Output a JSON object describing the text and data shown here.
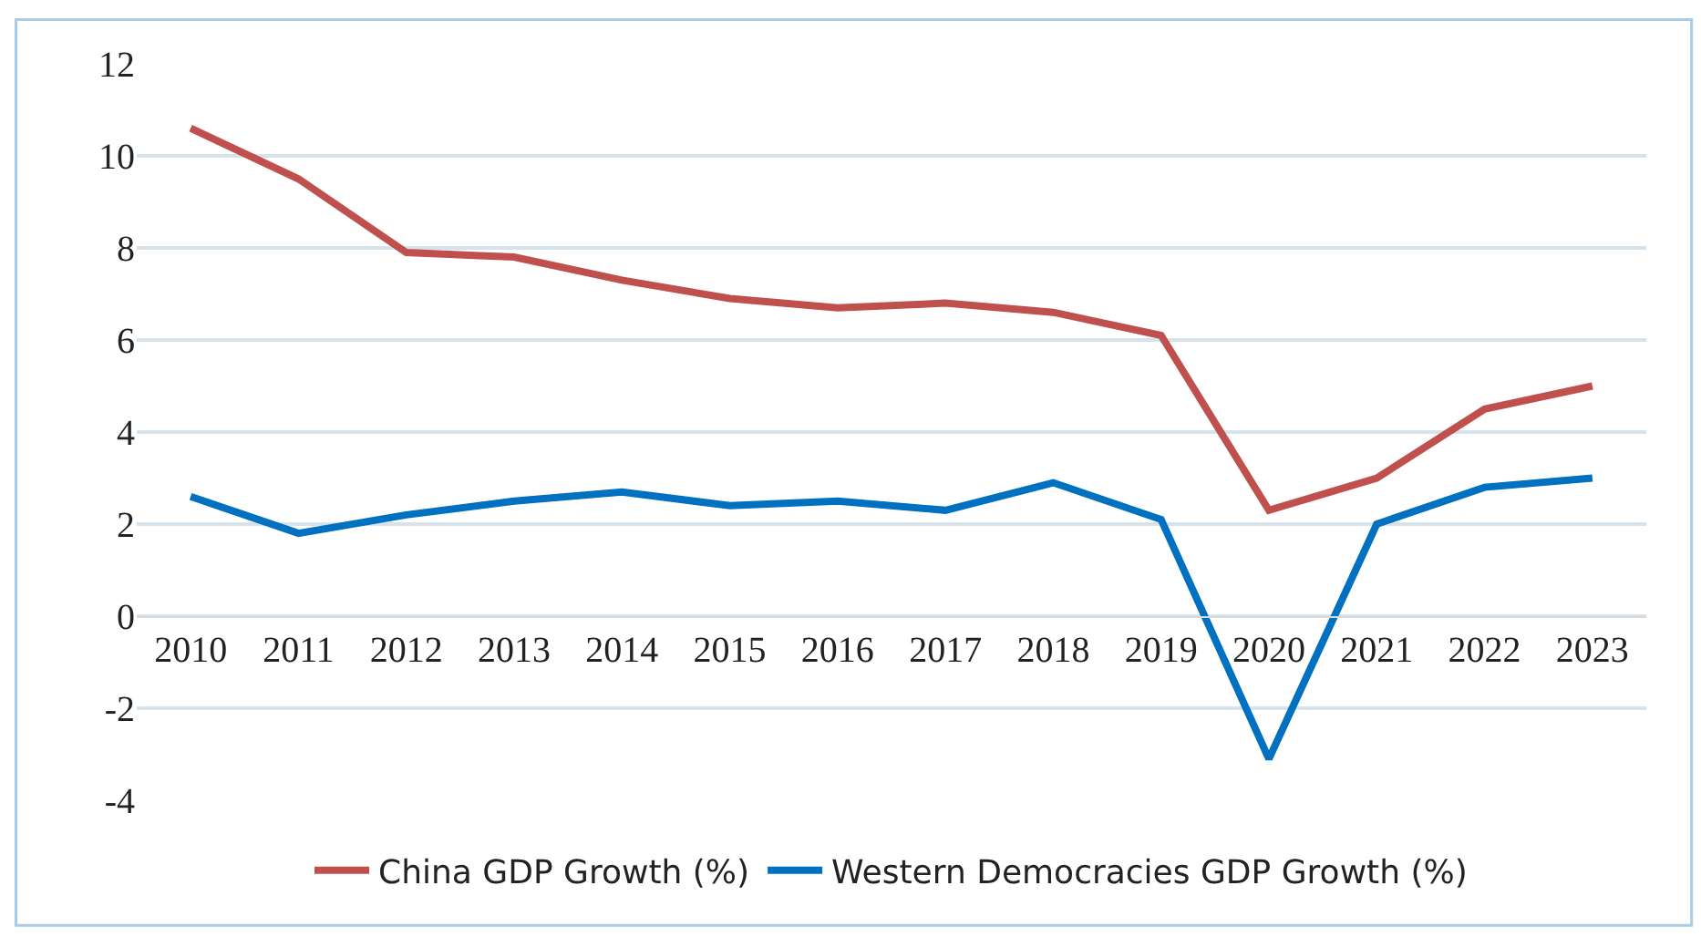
{
  "chart_data": {
    "type": "line",
    "categories": [
      "2010",
      "2011",
      "2012",
      "2013",
      "2014",
      "2015",
      "2016",
      "2017",
      "2018",
      "2019",
      "2020",
      "2021",
      "2022",
      "2023"
    ],
    "series": [
      {
        "name": "China GDP Growth (%)",
        "color": "#c0504d",
        "values": [
          10.6,
          9.5,
          7.9,
          7.8,
          7.3,
          6.9,
          6.7,
          6.8,
          6.6,
          6.1,
          2.3,
          3.0,
          4.5,
          5.0
        ]
      },
      {
        "name": "Western Democracies GDP Growth (%)",
        "color": "#0070c0",
        "values": [
          2.6,
          1.8,
          2.2,
          2.5,
          2.7,
          2.4,
          2.5,
          2.3,
          2.9,
          2.1,
          -3.1,
          2.0,
          2.8,
          3.0
        ]
      }
    ],
    "ylim": [
      -4,
      12
    ],
    "yticks": [
      -4,
      -2,
      0,
      2,
      4,
      6,
      8,
      10,
      12
    ],
    "grid": "y",
    "legend": "bottom",
    "marker": "none",
    "line_style": "solid"
  }
}
